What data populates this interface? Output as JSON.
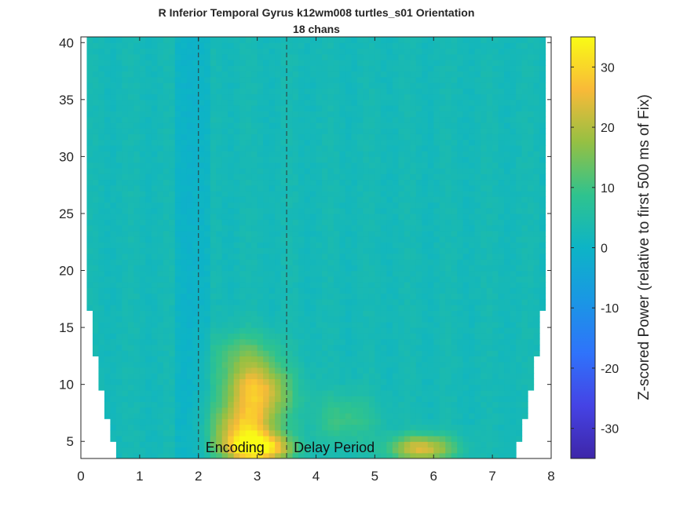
{
  "chart_data": {
    "type": "heatmap",
    "title": "R Inferior Temporal Gyrus k12wm008 turtles_s01 Orientation",
    "subtitle": "18 chans",
    "xlabel": "",
    "ylabel": "",
    "xlim": [
      0,
      8
    ],
    "ylim": [
      3.5,
      40.5
    ],
    "x_ticks": [
      "0",
      "1",
      "2",
      "3",
      "4",
      "5",
      "6",
      "7",
      "8"
    ],
    "y_ticks": [
      "5",
      "10",
      "15",
      "20",
      "25",
      "30",
      "35",
      "40"
    ],
    "colorbar": {
      "label": "Z-scored Power (relative to first 500 ms of Fix)",
      "range": [
        -35,
        35
      ],
      "ticks": [
        "-30",
        "-20",
        "-10",
        "0",
        "10",
        "20",
        "30"
      ],
      "colormap": "parula"
    },
    "event_lines": [
      {
        "x": 2.0,
        "label": "Encoding"
      },
      {
        "x": 3.5,
        "label": "Delay Period"
      }
    ],
    "data_extent": {
      "x_min": 0.08,
      "x_max": 7.92
    },
    "hotspots": [
      {
        "x": 3.0,
        "y": 4.4,
        "z": 33
      },
      {
        "x": 2.8,
        "y": 6.2,
        "z": 26
      },
      {
        "x": 3.0,
        "y": 9.5,
        "z": 25
      },
      {
        "x": 5.8,
        "y": 4.4,
        "z": 24
      },
      {
        "x": 2.8,
        "y": 12.5,
        "z": 13
      },
      {
        "x": 4.5,
        "y": 7.0,
        "z": 10
      }
    ],
    "grid": false
  }
}
